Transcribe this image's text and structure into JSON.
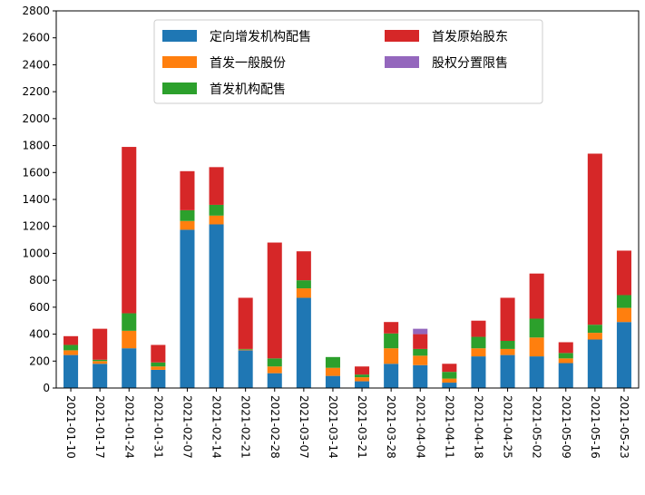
{
  "chart_data": {
    "type": "bar",
    "stacked": true,
    "categories": [
      "2021-01-10",
      "2021-01-17",
      "2021-01-24",
      "2021-01-31",
      "2021-02-07",
      "2021-02-14",
      "2021-02-21",
      "2021-02-28",
      "2021-03-07",
      "2021-03-14",
      "2021-03-21",
      "2021-03-28",
      "2021-04-04",
      "2021-04-11",
      "2021-04-18",
      "2021-04-25",
      "2021-05-02",
      "2021-05-09",
      "2021-05-16",
      "2021-05-23"
    ],
    "series": [
      {
        "name": "定向增发机构配售",
        "color": "#1f77b4",
        "values": [
          245,
          180,
          295,
          135,
          1175,
          1215,
          280,
          110,
          670,
          90,
          50,
          180,
          170,
          40,
          235,
          245,
          235,
          185,
          360,
          490
        ]
      },
      {
        "name": "首发一般股份",
        "color": "#ff7f0e",
        "values": [
          35,
          20,
          130,
          25,
          65,
          65,
          5,
          50,
          70,
          60,
          30,
          115,
          70,
          30,
          60,
          45,
          140,
          35,
          50,
          105
        ]
      },
      {
        "name": "首发机构配售",
        "color": "#2ca02c",
        "values": [
          40,
          10,
          130,
          30,
          80,
          80,
          5,
          60,
          60,
          80,
          20,
          110,
          50,
          50,
          85,
          60,
          140,
          40,
          60,
          95
        ]
      },
      {
        "name": "首发原始股东",
        "color": "#d62728",
        "values": [
          65,
          230,
          1235,
          130,
          290,
          280,
          380,
          860,
          215,
          0,
          60,
          85,
          110,
          60,
          120,
          320,
          335,
          80,
          1270,
          330
        ]
      },
      {
        "name": "股权分置限售",
        "color": "#9467bd",
        "values": [
          0,
          0,
          0,
          0,
          0,
          0,
          0,
          0,
          0,
          0,
          0,
          0,
          40,
          0,
          0,
          0,
          0,
          0,
          0,
          0
        ]
      }
    ],
    "ylim": [
      0,
      2800
    ],
    "yticks": [
      "0",
      "200",
      "400",
      "600",
      "800",
      "1000",
      "1200",
      "1400",
      "1600",
      "1800",
      "2000",
      "2200",
      "2400",
      "2600",
      "2800"
    ],
    "legend": {
      "placement": "upper-center",
      "columns": 2
    },
    "grid": false
  }
}
